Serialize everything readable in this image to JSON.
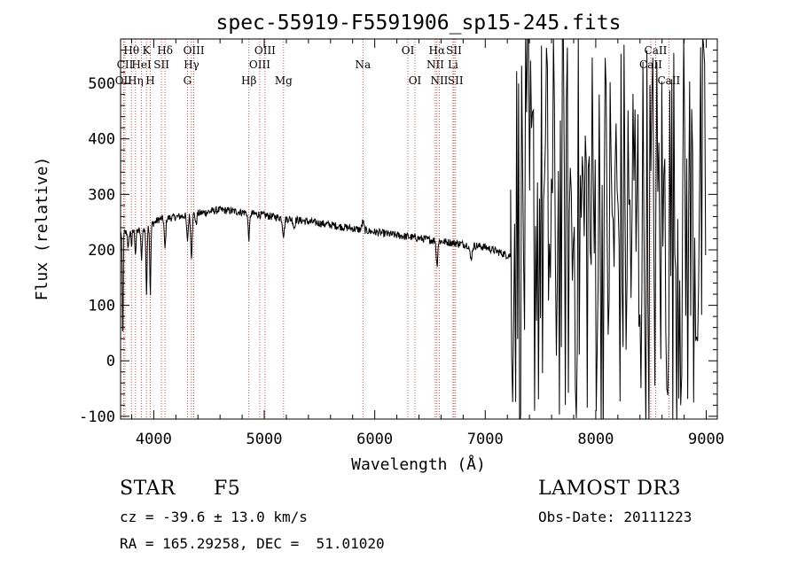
{
  "chart_data": {
    "type": "line",
    "title": "spec-55919-F5591906_sp15-245.fits",
    "xlabel": "Wavelength (Å)",
    "ylabel": "Flux (relative)",
    "xlim": [
      3700,
      9100
    ],
    "ylim": [
      -105,
      580
    ],
    "xticks": [
      4000,
      5000,
      6000,
      7000,
      8000,
      9000
    ],
    "yticks": [
      -100,
      0,
      100,
      200,
      300,
      400,
      500
    ],
    "spectral_lines": [
      {
        "label": "Hθ",
        "wavelength": 3798,
        "row": 0
      },
      {
        "label": "CII",
        "wavelength": 3740,
        "row": 1
      },
      {
        "label": "OII",
        "wavelength": 3727,
        "row": 2
      },
      {
        "label": "Hη",
        "wavelength": 3835,
        "row": 2
      },
      {
        "label": "HeI",
        "wavelength": 3889,
        "row": 1
      },
      {
        "label": "K",
        "wavelength": 3934,
        "row": 0
      },
      {
        "label": "H",
        "wavelength": 3969,
        "row": 2
      },
      {
        "label": "SII",
        "wavelength": 4070,
        "row": 1
      },
      {
        "label": "Hδ",
        "wavelength": 4102,
        "row": 0
      },
      {
        "label": "OIII",
        "wavelength": 4363,
        "row": 0
      },
      {
        "label": "Hγ",
        "wavelength": 4341,
        "row": 1
      },
      {
        "label": "G",
        "wavelength": 4305,
        "row": 2
      },
      {
        "label": "Hβ",
        "wavelength": 4861,
        "row": 2
      },
      {
        "label": "OIII",
        "wavelength": 5007,
        "row": 0
      },
      {
        "label": "OIII",
        "wavelength": 4959,
        "row": 1
      },
      {
        "label": "Mg",
        "wavelength": 5175,
        "row": 2
      },
      {
        "label": "Na",
        "wavelength": 5893,
        "row": 1
      },
      {
        "label": "OI",
        "wavelength": 6300,
        "row": 0
      },
      {
        "label": "OI",
        "wavelength": 6364,
        "row": 2
      },
      {
        "label": "Hα",
        "wavelength": 6563,
        "row": 0
      },
      {
        "label": "NII",
        "wavelength": 6548,
        "row": 1
      },
      {
        "label": "NII",
        "wavelength": 6584,
        "row": 2
      },
      {
        "label": "SII",
        "wavelength": 6717,
        "row": 0
      },
      {
        "label": "Li",
        "wavelength": 6708,
        "row": 1
      },
      {
        "label": "SII",
        "wavelength": 6731,
        "row": 2
      },
      {
        "label": "CaII",
        "wavelength": 8542,
        "row": 0
      },
      {
        "label": "CaII",
        "wavelength": 8498,
        "row": 1
      },
      {
        "label": "CaII",
        "wavelength": 8662,
        "row": 2
      }
    ],
    "continuum_knots": [
      {
        "x": 3700,
        "y": 230
      },
      {
        "x": 3900,
        "y": 235
      },
      {
        "x": 4050,
        "y": 255
      },
      {
        "x": 4300,
        "y": 262
      },
      {
        "x": 4600,
        "y": 272
      },
      {
        "x": 4800,
        "y": 268
      },
      {
        "x": 5000,
        "y": 262
      },
      {
        "x": 5500,
        "y": 248
      },
      {
        "x": 6000,
        "y": 232
      },
      {
        "x": 6500,
        "y": 218
      },
      {
        "x": 7000,
        "y": 205
      },
      {
        "x": 7200,
        "y": 190
      }
    ],
    "absorption_features": [
      {
        "x": 3720,
        "depth": 200,
        "width": 6
      },
      {
        "x": 3770,
        "depth": 30,
        "width": 8
      },
      {
        "x": 3800,
        "depth": 25,
        "width": 6
      },
      {
        "x": 3835,
        "depth": 40,
        "width": 7
      },
      {
        "x": 3889,
        "depth": 50,
        "width": 8
      },
      {
        "x": 3934,
        "depth": 120,
        "width": 7
      },
      {
        "x": 3969,
        "depth": 125,
        "width": 7
      },
      {
        "x": 4102,
        "depth": 55,
        "width": 9
      },
      {
        "x": 4305,
        "depth": 45,
        "width": 10
      },
      {
        "x": 4341,
        "depth": 75,
        "width": 9
      },
      {
        "x": 4383,
        "depth": 20,
        "width": 8
      },
      {
        "x": 4861,
        "depth": 45,
        "width": 10
      },
      {
        "x": 5175,
        "depth": 30,
        "width": 12
      },
      {
        "x": 5270,
        "depth": 15,
        "width": 10
      },
      {
        "x": 6563,
        "depth": 45,
        "width": 9
      },
      {
        "x": 6870,
        "depth": 25,
        "width": 14
      }
    ],
    "emission_features": [
      {
        "x": 5893,
        "height": 15,
        "width": 12
      }
    ],
    "noise_region": {
      "start": 7230,
      "end": 9000,
      "low": -100,
      "high": 580
    },
    "colors": {
      "axis": "#000000",
      "line": "#000000",
      "marker": "#cc2222",
      "background": "#ffffff"
    }
  },
  "info": {
    "object_class": "STAR",
    "subclass": "F5",
    "survey": "LAMOST DR3",
    "redshift": "cz = -39.6 ± 13.0 km/s",
    "obs_date": "Obs-Date: 20111223",
    "coordinates": "RA = 165.29258, DEC =  51.01020"
  }
}
